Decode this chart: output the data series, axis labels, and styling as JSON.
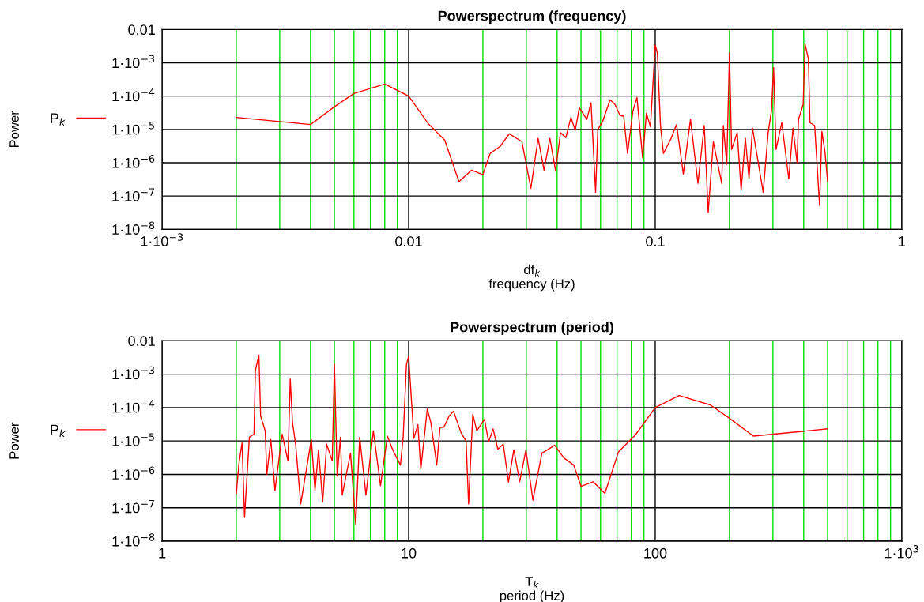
{
  "chart_data": [
    {
      "type": "line",
      "title": "Powerspectrum (frequency)",
      "xlabel": "df$_{k}$\nfrequency (Hz)",
      "ylabel": "Power",
      "log": "xy",
      "grid": true,
      "legend": "left",
      "xlim": [
        0.001,
        1
      ],
      "ylim": [
        1e-08,
        0.01
      ],
      "xticks": [
        {
          "value": 0.001,
          "label": "1·10$^{−3}$"
        },
        {
          "value": 0.002,
          "label": null
        },
        {
          "value": 0.003,
          "label": null
        },
        {
          "value": 0.004,
          "label": null
        },
        {
          "value": 0.005,
          "label": null
        },
        {
          "value": 0.006,
          "label": null
        },
        {
          "value": 0.007,
          "label": null
        },
        {
          "value": 0.008,
          "label": null
        },
        {
          "value": 0.009,
          "label": null
        },
        0.01,
        {
          "value": 0.02,
          "label": null
        },
        {
          "value": 0.03,
          "label": null
        },
        {
          "value": 0.04,
          "label": null
        },
        {
          "value": 0.05,
          "label": null
        },
        {
          "value": 0.06,
          "label": null
        },
        {
          "value": 0.07,
          "label": null
        },
        {
          "value": 0.08,
          "label": null
        },
        {
          "value": 0.09,
          "label": null
        },
        0.1,
        {
          "value": 0.2,
          "label": null
        },
        {
          "value": 0.3,
          "label": null
        },
        {
          "value": 0.4,
          "label": null
        },
        {
          "value": 0.5,
          "label": null
        },
        {
          "value": 0.6,
          "label": null
        },
        {
          "value": 0.7,
          "label": null
        },
        {
          "value": 0.8,
          "label": null
        },
        {
          "value": 0.9,
          "label": null
        },
        1
      ],
      "yticks": [
        {
          "value": 1e-08,
          "label": "1·10$^{−8}$"
        },
        {
          "value": 1e-07,
          "label": "1·10$^{−7}$"
        },
        {
          "value": 1e-06,
          "label": "1·10$^{−6}$"
        },
        {
          "value": 1e-05,
          "label": "1·10$^{−5}$"
        },
        {
          "value": 0.0001,
          "label": "1·10$^{−4}$"
        },
        {
          "value": 0.001,
          "label": "1·10$^{−3}$"
        },
        0.01
      ],
      "series": [
        {
          "name": "P$_{k}$",
          "color": "#ff0000",
          "x": [
            0.002,
            0.004,
            0.005,
            0.006,
            0.008,
            0.01,
            0.012,
            0.014,
            0.016,
            0.018,
            0.02,
            0.0214,
            0.0235,
            0.0256,
            0.0288,
            0.0313,
            0.0335,
            0.0354,
            0.0374,
            0.0394,
            0.0413,
            0.0434,
            0.0455,
            0.0474,
            0.0492,
            0.0528,
            0.0549,
            0.0573,
            0.0585,
            0.0613,
            0.0656,
            0.0687,
            0.072,
            0.0745,
            0.0772,
            0.0812,
            0.0843,
            0.0889,
            0.0921,
            0.0956,
            0.1,
            0.102,
            0.105,
            0.108,
            0.116,
            0.122,
            0.13,
            0.139,
            0.149,
            0.158,
            0.164,
            0.172,
            0.186,
            0.189,
            0.195,
            0.2,
            0.204,
            0.215,
            0.223,
            0.232,
            0.24,
            0.248,
            0.274,
            0.287,
            0.296,
            0.302,
            0.309,
            0.326,
            0.348,
            0.362,
            0.376,
            0.381,
            0.398,
            0.405,
            0.418,
            0.424,
            0.443,
            0.464,
            0.474,
            0.488,
            0.5
          ],
          "values": [
            2.3e-05,
            1.4e-05,
            4.8e-05,
            0.00012,
            0.00023,
            0.0001,
            1.5e-05,
            4.8e-06,
            2.7e-07,
            6e-07,
            4.4e-07,
            1.9e-06,
            3.1e-06,
            7.4e-06,
            4.3e-06,
            1.7e-07,
            5.4e-06,
            6e-07,
            5.4e-06,
            5.8e-07,
            8e-06,
            5.7e-06,
            2.3e-05,
            9.3e-06,
            4.5e-05,
            2e-05,
            6.3e-05,
            1.3e-07,
            9.8e-06,
            1.8e-05,
            7.8e-05,
            5.6e-05,
            2.6e-05,
            2.5e-05,
            1.9e-06,
            3.6e-05,
            9.1e-05,
            1.4e-06,
            3.1e-05,
            1.2e-05,
            0.0034,
            0.002,
            1.3e-05,
            1.9e-06,
            5.4e-06,
            1.4e-05,
            4.6e-07,
            2e-05,
            2.4e-07,
            1.3e-05,
            3.2e-08,
            4.3e-06,
            2.4e-07,
            1.3e-05,
            8.9e-07,
            0.002,
            2.5e-06,
            8e-06,
            1.5e-07,
            5.4e-06,
            3.3e-07,
            1.1e-05,
            1.3e-07,
            8e-06,
            3.6e-05,
            0.00072,
            2.5e-06,
            1.6e-05,
            3.3e-07,
            1.1e-05,
            1e-06,
            2e-05,
            5.6e-05,
            0.0037,
            0.0013,
            1.6e-05,
            1.3e-05,
            5.2e-08,
            8.7e-06,
            2.1e-06,
            2.7e-07
          ]
        }
      ]
    },
    {
      "type": "line",
      "title": "Powerspectrum (period)",
      "xlabel": "T$_{k}$\nperiod (Hz)",
      "ylabel": "Power",
      "log": "xy",
      "grid": true,
      "legend": "left",
      "xlim": [
        1,
        1000
      ],
      "ylim": [
        1e-08,
        0.01
      ],
      "xticks": [
        1,
        {
          "value": 2,
          "label": null
        },
        {
          "value": 3,
          "label": null
        },
        {
          "value": 4,
          "label": null
        },
        {
          "value": 5,
          "label": null
        },
        {
          "value": 6,
          "label": null
        },
        {
          "value": 7,
          "label": null
        },
        {
          "value": 8,
          "label": null
        },
        {
          "value": 9,
          "label": null
        },
        10,
        {
          "value": 20,
          "label": null
        },
        {
          "value": 30,
          "label": null
        },
        {
          "value": 40,
          "label": null
        },
        {
          "value": 50,
          "label": null
        },
        {
          "value": 60,
          "label": null
        },
        {
          "value": 70,
          "label": null
        },
        {
          "value": 80,
          "label": null
        },
        {
          "value": 90,
          "label": null
        },
        100,
        {
          "value": 200,
          "label": null
        },
        {
          "value": 300,
          "label": null
        },
        {
          "value": 400,
          "label": null
        },
        {
          "value": 500,
          "label": null
        },
        {
          "value": 600,
          "label": null
        },
        {
          "value": 700,
          "label": null
        },
        {
          "value": 800,
          "label": null
        },
        {
          "value": 900,
          "label": null
        },
        {
          "value": 1000,
          "label": "1·10$^{3}$"
        }
      ],
      "yticks": [
        {
          "value": 1e-08,
          "label": "1·10$^{−8}$"
        },
        {
          "value": 1e-07,
          "label": "1·10$^{−7}$"
        },
        {
          "value": 1e-06,
          "label": "1·10$^{−6}$"
        },
        {
          "value": 1e-05,
          "label": "1·10$^{−5}$"
        },
        {
          "value": 0.0001,
          "label": "1·10$^{−4}$"
        },
        {
          "value": 0.001,
          "label": "1·10$^{−3}$"
        },
        0.01
      ],
      "series": [
        {
          "name": "P$_{k}$",
          "color": "#ff0000",
          "x": [
            500,
            250,
            200,
            167,
            125,
            100,
            83,
            71,
            62.5,
            56,
            50,
            46.7,
            42.6,
            39.1,
            34.7,
            31.9,
            29.9,
            28.2,
            26.7,
            25.4,
            24.2,
            23.0,
            22.0,
            21.1,
            20.3,
            18.9,
            18.2,
            17.5,
            17.1,
            16.3,
            15.2,
            14.6,
            13.9,
            13.4,
            13.0,
            12.3,
            11.9,
            11.2,
            10.9,
            10.5,
            10,
            9.8,
            9.5,
            9.26,
            8.62,
            8.2,
            7.69,
            7.19,
            6.71,
            6.33,
            6.1,
            5.81,
            5.38,
            5.29,
            5.13,
            5,
            4.9,
            4.65,
            4.48,
            4.31,
            4.17,
            4.03,
            3.65,
            3.48,
            3.38,
            3.31,
            3.24,
            3.07,
            2.87,
            2.76,
            2.66,
            2.62,
            2.51,
            2.47,
            2.39,
            2.36,
            2.26,
            2.16,
            2.11,
            2.05,
            2
          ],
          "values": [
            2.3e-05,
            1.4e-05,
            4.8e-05,
            0.00012,
            0.00023,
            0.0001,
            1.5e-05,
            4.8e-06,
            2.7e-07,
            6e-07,
            4.4e-07,
            1.9e-06,
            3.1e-06,
            7.4e-06,
            4.3e-06,
            1.7e-07,
            5.4e-06,
            6e-07,
            5.4e-06,
            5.8e-07,
            8e-06,
            5.7e-06,
            2.3e-05,
            9.3e-06,
            4.5e-05,
            2e-05,
            6.3e-05,
            1.3e-07,
            9.8e-06,
            1.8e-05,
            7.8e-05,
            5.6e-05,
            2.6e-05,
            2.5e-05,
            1.9e-06,
            3.6e-05,
            9.1e-05,
            1.4e-06,
            3.1e-05,
            1.2e-05,
            0.0034,
            0.002,
            1.3e-05,
            1.9e-06,
            5.4e-06,
            1.4e-05,
            4.6e-07,
            2e-05,
            2.4e-07,
            1.3e-05,
            3.2e-08,
            4.3e-06,
            2.4e-07,
            1.3e-05,
            8.9e-07,
            0.002,
            2.5e-06,
            8e-06,
            1.5e-07,
            5.4e-06,
            3.3e-07,
            1.1e-05,
            1.3e-07,
            8e-06,
            3.6e-05,
            0.00072,
            2.5e-06,
            1.6e-05,
            3.3e-07,
            1.1e-05,
            1e-06,
            2e-05,
            5.6e-05,
            0.0037,
            0.0013,
            1.6e-05,
            1.3e-05,
            5.2e-08,
            8.7e-06,
            2.1e-06,
            2.7e-07
          ]
        }
      ]
    }
  ]
}
